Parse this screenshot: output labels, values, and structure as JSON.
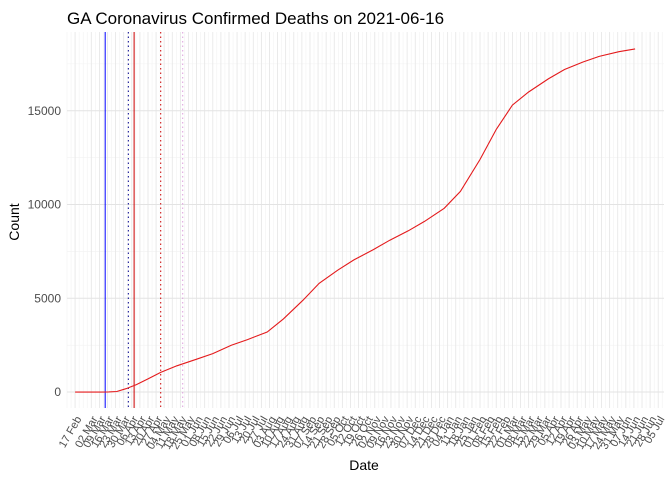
{
  "chart_data": {
    "type": "line",
    "title": "GA Coronavirus Confirmed Deaths on 2021-06-16",
    "xlabel": "Date",
    "ylabel": "Count",
    "x_type": "date",
    "xlim": [
      "2020-02-10",
      "2021-07-10"
    ],
    "ylim": [
      -850,
      19200
    ],
    "y_ticks": [
      0,
      5000,
      10000,
      15000
    ],
    "x_ticks": [
      {
        "date": "2020-02-17",
        "label": "17 Feb"
      },
      {
        "date": "2020-03-02",
        "label": "02 Mar"
      },
      {
        "date": "2020-03-09",
        "label": "09 Mar"
      },
      {
        "date": "2020-03-16",
        "label": "16 Mar"
      },
      {
        "date": "2020-03-23",
        "label": "23 Mar"
      },
      {
        "date": "2020-03-30",
        "label": "30 Mar"
      },
      {
        "date": "2020-04-06",
        "label": "06 Apr"
      },
      {
        "date": "2020-04-13",
        "label": "13 Apr"
      },
      {
        "date": "2020-04-20",
        "label": "20 Apr"
      },
      {
        "date": "2020-04-27",
        "label": "27 Apr"
      },
      {
        "date": "2020-05-04",
        "label": "04 May"
      },
      {
        "date": "2020-05-11",
        "label": "11 May"
      },
      {
        "date": "2020-05-18",
        "label": "18 May"
      },
      {
        "date": "2020-05-25",
        "label": "25 May"
      },
      {
        "date": "2020-06-01",
        "label": "01 Jun"
      },
      {
        "date": "2020-06-08",
        "label": "08 Jun"
      },
      {
        "date": "2020-06-15",
        "label": "15 Jun"
      },
      {
        "date": "2020-06-22",
        "label": "22 Jun"
      },
      {
        "date": "2020-06-29",
        "label": "29 Jun"
      },
      {
        "date": "2020-07-06",
        "label": "06 Jul"
      },
      {
        "date": "2020-07-13",
        "label": "13 Jul"
      },
      {
        "date": "2020-07-20",
        "label": "20 Jul"
      },
      {
        "date": "2020-07-27",
        "label": "27 Jul"
      },
      {
        "date": "2020-08-03",
        "label": "03 Aug"
      },
      {
        "date": "2020-08-10",
        "label": "10 Aug"
      },
      {
        "date": "2020-08-17",
        "label": "17 Aug"
      },
      {
        "date": "2020-08-24",
        "label": "24 Aug"
      },
      {
        "date": "2020-08-31",
        "label": "31 Aug"
      },
      {
        "date": "2020-09-07",
        "label": "07 Sep"
      },
      {
        "date": "2020-09-14",
        "label": "14 Sep"
      },
      {
        "date": "2020-09-21",
        "label": "21 Sep"
      },
      {
        "date": "2020-09-28",
        "label": "28 Sep"
      },
      {
        "date": "2020-10-05",
        "label": "05 Oct"
      },
      {
        "date": "2020-10-12",
        "label": "12 Oct"
      },
      {
        "date": "2020-10-19",
        "label": "19 Oct"
      },
      {
        "date": "2020-10-26",
        "label": "26 Oct"
      },
      {
        "date": "2020-11-02",
        "label": "02 Nov"
      },
      {
        "date": "2020-11-09",
        "label": "09 Nov"
      },
      {
        "date": "2020-11-16",
        "label": "16 Nov"
      },
      {
        "date": "2020-11-23",
        "label": "23 Nov"
      },
      {
        "date": "2020-11-30",
        "label": "30 Nov"
      },
      {
        "date": "2020-12-07",
        "label": "07 Dec"
      },
      {
        "date": "2020-12-14",
        "label": "14 Dec"
      },
      {
        "date": "2020-12-21",
        "label": "21 Dec"
      },
      {
        "date": "2020-12-28",
        "label": "28 Dec"
      },
      {
        "date": "2021-01-04",
        "label": "04 Jan"
      },
      {
        "date": "2021-01-11",
        "label": "11 Jan"
      },
      {
        "date": "2021-01-18",
        "label": "18 Jan"
      },
      {
        "date": "2021-01-25",
        "label": "25 Jan"
      },
      {
        "date": "2021-02-01",
        "label": "01 Feb"
      },
      {
        "date": "2021-02-08",
        "label": "08 Feb"
      },
      {
        "date": "2021-02-15",
        "label": "15 Feb"
      },
      {
        "date": "2021-02-22",
        "label": "22 Feb"
      },
      {
        "date": "2021-03-01",
        "label": "01 Mar"
      },
      {
        "date": "2021-03-08",
        "label": "08 Mar"
      },
      {
        "date": "2021-03-15",
        "label": "15 Mar"
      },
      {
        "date": "2021-03-22",
        "label": "22 Mar"
      },
      {
        "date": "2021-03-29",
        "label": "29 Mar"
      },
      {
        "date": "2021-04-05",
        "label": "05 Apr"
      },
      {
        "date": "2021-04-12",
        "label": "12 Apr"
      },
      {
        "date": "2021-04-19",
        "label": "19 Apr"
      },
      {
        "date": "2021-04-26",
        "label": "26 Apr"
      },
      {
        "date": "2021-05-03",
        "label": "03 May"
      },
      {
        "date": "2021-05-10",
        "label": "10 May"
      },
      {
        "date": "2021-05-17",
        "label": "17 May"
      },
      {
        "date": "2021-05-24",
        "label": "24 May"
      },
      {
        "date": "2021-05-31",
        "label": "31 May"
      },
      {
        "date": "2021-06-07",
        "label": "07 Jun"
      },
      {
        "date": "2021-06-14",
        "label": "14 Jun"
      },
      {
        "date": "2021-06-21",
        "label": "21 Jun"
      },
      {
        "date": "2021-06-28",
        "label": "28 Jun"
      },
      {
        "date": "2021-07-05",
        "label": "05 Jul"
      }
    ],
    "series": [
      {
        "color": "#e41a1c",
        "points": [
          [
            "2020-02-17",
            0
          ],
          [
            "2020-03-01",
            0
          ],
          [
            "2020-03-10",
            0
          ],
          [
            "2020-03-17",
            10
          ],
          [
            "2020-03-24",
            30
          ],
          [
            "2020-04-01",
            180
          ],
          [
            "2020-04-10",
            400
          ],
          [
            "2020-04-20",
            700
          ],
          [
            "2020-05-01",
            1050
          ],
          [
            "2020-05-15",
            1400
          ],
          [
            "2020-06-01",
            1750
          ],
          [
            "2020-06-15",
            2050
          ],
          [
            "2020-07-01",
            2500
          ],
          [
            "2020-07-15",
            2800
          ],
          [
            "2020-08-01",
            3200
          ],
          [
            "2020-08-15",
            3900
          ],
          [
            "2020-09-01",
            4900
          ],
          [
            "2020-09-15",
            5800
          ],
          [
            "2020-10-01",
            6500
          ],
          [
            "2020-10-15",
            7050
          ],
          [
            "2020-11-01",
            7600
          ],
          [
            "2020-11-15",
            8100
          ],
          [
            "2020-12-01",
            8600
          ],
          [
            "2020-12-15",
            9100
          ],
          [
            "2021-01-01",
            9800
          ],
          [
            "2021-01-15",
            10700
          ],
          [
            "2021-02-01",
            12400
          ],
          [
            "2021-02-15",
            14000
          ],
          [
            "2021-03-01",
            15300
          ],
          [
            "2021-03-15",
            16000
          ],
          [
            "2021-04-01",
            16700
          ],
          [
            "2021-04-15",
            17200
          ],
          [
            "2021-05-01",
            17600
          ],
          [
            "2021-05-15",
            17900
          ],
          [
            "2021-06-01",
            18150
          ],
          [
            "2021-06-15",
            18300
          ]
        ]
      }
    ],
    "vlines": [
      {
        "date": "2020-03-14",
        "color": "#0000ff",
        "style": "solid"
      },
      {
        "date": "2020-04-03",
        "color": "#00008b",
        "style": "dotted"
      },
      {
        "date": "2020-04-08",
        "color": "#cc0000",
        "style": "solid"
      },
      {
        "date": "2020-05-01",
        "color": "#cc0000",
        "style": "dotted"
      },
      {
        "date": "2020-05-20",
        "color": "#dda0dd",
        "style": "dotted"
      }
    ],
    "grid": true
  }
}
